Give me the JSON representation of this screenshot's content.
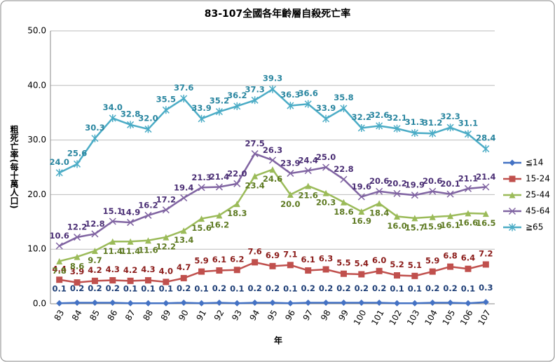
{
  "chart_data": {
    "type": "line",
    "title": "83-107全國各年齡層自殺死亡率",
    "y_label": "粗死亡率(每十萬人口)",
    "x_label": "年",
    "categories": [
      "83",
      "84",
      "85",
      "86",
      "87",
      "88",
      "89",
      "90",
      "91",
      "92",
      "93",
      "94",
      "95",
      "96",
      "97",
      "98",
      "99",
      "100",
      "101",
      "102",
      "103",
      "104",
      "105",
      "106",
      "107"
    ],
    "ylim": [
      0,
      50
    ],
    "yticks": [
      {
        "value": 0,
        "label": "0.0"
      },
      {
        "value": 10,
        "label": "10.0"
      },
      {
        "value": 20,
        "label": "20.0"
      },
      {
        "value": 30,
        "label": "30.0"
      },
      {
        "value": 40,
        "label": "40.0"
      },
      {
        "value": 50,
        "label": "50.0"
      }
    ],
    "grid": true,
    "legend": "right",
    "series": [
      {
        "name": "≦14",
        "color": "#4472c4",
        "marker": "diamond",
        "values": [
          0.1,
          0.2,
          0.2,
          0.2,
          0.1,
          0.1,
          0.1,
          0.2,
          0.1,
          0.2,
          0.1,
          0.2,
          0.2,
          0.1,
          0.2,
          0.2,
          0.2,
          0.2,
          0.2,
          0.1,
          0.1,
          0.2,
          0.2,
          0.1,
          0.3
        ],
        "value_labels": [
          "0.1",
          "0.2",
          "0.2",
          "0.2",
          "0.1",
          "0.1",
          "0.1",
          "0.2",
          "0.1",
          "0.2",
          "0.1",
          "0.2",
          "0.2",
          "0.1",
          "0.2",
          "0.2",
          "0.2",
          "0.2",
          "0.2",
          "0.1",
          "0.1",
          "0.2",
          "0.2",
          "0.1",
          "0.3"
        ]
      },
      {
        "name": "15-24",
        "color": "#c0504d",
        "marker": "square",
        "values": [
          4.4,
          3.9,
          4.2,
          4.3,
          4.2,
          4.3,
          4.0,
          4.7,
          5.9,
          6.1,
          6.2,
          7.6,
          6.9,
          7.1,
          6.1,
          6.3,
          5.5,
          5.4,
          6.0,
          5.2,
          5.1,
          5.9,
          6.8,
          6.4,
          7.2
        ],
        "value_labels": [
          "4.4",
          "3.9",
          "4.2",
          "4.3",
          "4.2",
          "4.3",
          "4.0",
          "4.7",
          "5.9",
          "6.1",
          "6.2",
          "7.6",
          "6.9",
          "7.1",
          "6.1",
          "6.3",
          "5.5",
          "5.4",
          "6.0",
          "5.2",
          "5.1",
          "5.9",
          "6.8",
          "6.4",
          "7.2"
        ]
      },
      {
        "name": "25-44",
        "color": "#9bbb59",
        "marker": "triangle",
        "values": [
          7.8,
          8.6,
          9.7,
          11.4,
          11.4,
          11.6,
          12.2,
          13.4,
          15.6,
          16.2,
          18.3,
          23.4,
          24.6,
          20.0,
          21.6,
          20.3,
          18.6,
          16.9,
          18.4,
          16.0,
          15.7,
          15.9,
          16.1,
          16.6,
          16.5
        ],
        "value_labels": [
          "7.8",
          "8.6",
          "9.7",
          "11.4",
          "11.4",
          "11.6",
          "12.2",
          "13.4",
          "15.6",
          "16.2",
          "18.3",
          "23.4",
          "24.6",
          "20.0",
          "21.6",
          "20.3",
          "18.6",
          "16.9",
          "18.4",
          "16.0",
          "15.7",
          "15.9",
          "16.1",
          "16.6",
          "16.5"
        ]
      },
      {
        "name": "45-64",
        "color": "#8064a2",
        "marker": "x",
        "values": [
          10.6,
          12.2,
          12.8,
          15.1,
          14.9,
          16.2,
          17.2,
          19.4,
          21.3,
          21.4,
          22.0,
          27.5,
          26.3,
          23.9,
          24.4,
          25.0,
          22.8,
          19.6,
          20.6,
          20.2,
          19.9,
          20.6,
          20.1,
          21.1,
          21.4
        ],
        "value_labels": [
          "10.6",
          "12.2",
          "12.8",
          "15.1",
          "14.9",
          "16.2",
          "17.2",
          "19.4",
          "21.3",
          "21.4",
          "22.0",
          "27.5",
          "26.3",
          "23.9",
          "24.4",
          "25.0",
          "22.8",
          "19.6",
          "20.6",
          "20.2",
          "19.9",
          "20.6",
          "20.1",
          "21.1",
          "21.4"
        ]
      },
      {
        "name": "≧65",
        "color": "#4bacc6",
        "marker": "star",
        "values": [
          24.0,
          25.6,
          30.3,
          34.0,
          32.8,
          32.0,
          35.5,
          37.6,
          33.9,
          35.2,
          36.2,
          37.3,
          39.3,
          36.3,
          36.6,
          33.9,
          35.8,
          32.2,
          32.6,
          32.1,
          31.3,
          31.2,
          32.3,
          31.1,
          28.4
        ],
        "value_labels": [
          "24.0",
          "25.6",
          "30.3",
          "34.0",
          "32.8",
          "32.0",
          "35.5",
          "37.6",
          "33.9",
          "35.2",
          "36.2",
          "37.3",
          "39.3",
          "36.3",
          "36.6",
          "33.9",
          "35.8",
          "32.2",
          "32.6",
          "32.1",
          "31.3",
          "31.2",
          "32.3",
          "31.1",
          "28.4"
        ]
      }
    ]
  }
}
